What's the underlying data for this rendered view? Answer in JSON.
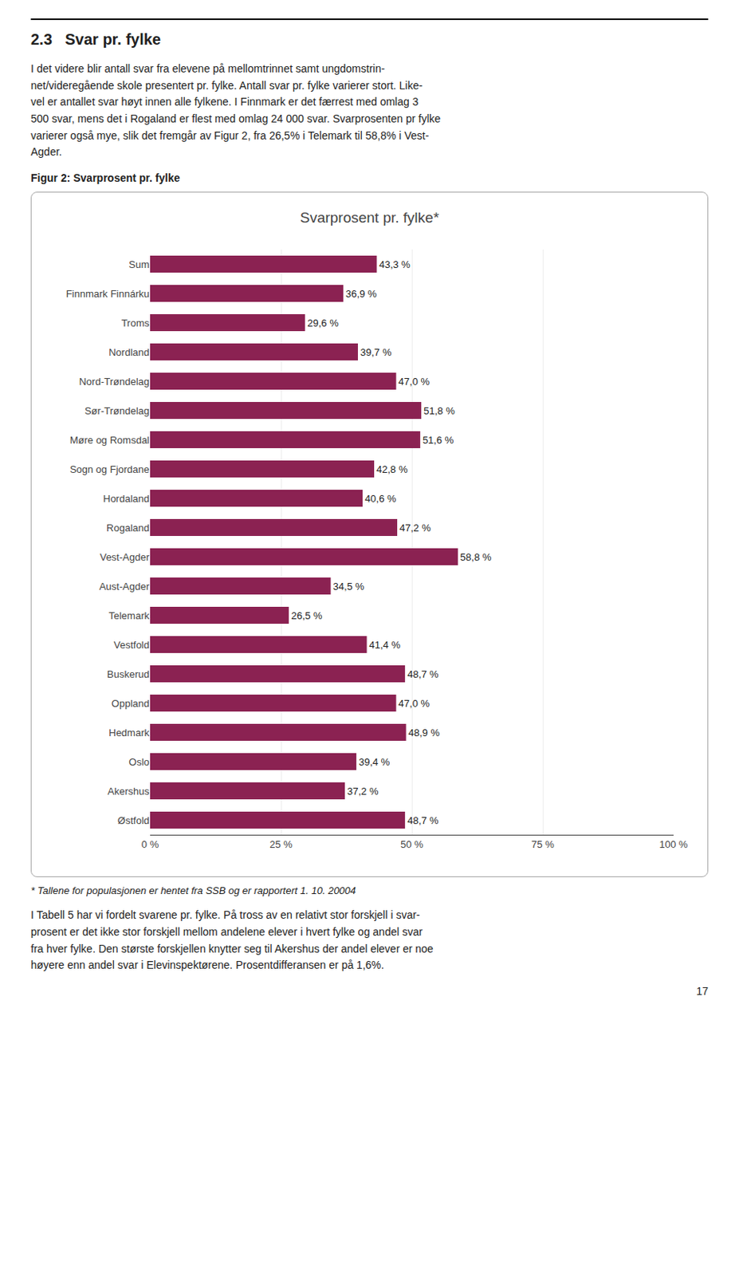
{
  "heading": "2.3   Svar pr. fylke",
  "body_text_1": "I det videre blir antall svar fra elevene på mellomtrinnet samt ungdomstrin-\nnet/videregående skole presentert pr. fylke. Antall svar pr. fylke varierer stort. Like-\nvel er antallet svar høyt innen alle fylkene. I Finnmark er det færrest med omlag 3\n500 svar, mens det i Rogaland er flest med omlag 24 000 svar. Svarprosenten pr fylke\nvarierer også mye, slik det fremgår av Figur 2, fra 26,5% i Telemark til 58,8% i Vest-\nAgder.",
  "fig_label": "Figur 2: Svarprosent pr. fylke",
  "chart_data": {
    "type": "bar",
    "orientation": "horizontal",
    "title": "Svarprosent pr. fylke*",
    "categories": [
      "Sum",
      "Finnmark Finnárku",
      "Troms",
      "Nordland",
      "Nord-Trøndelag",
      "Sør-Trøndelag",
      "Møre og Romsdal",
      "Sogn og Fjordane",
      "Hordaland",
      "Rogaland",
      "Vest-Agder",
      "Aust-Agder",
      "Telemark",
      "Vestfold",
      "Buskerud",
      "Oppland",
      "Hedmark",
      "Oslo",
      "Akershus",
      "Østfold"
    ],
    "values": [
      43.3,
      36.9,
      29.6,
      39.7,
      47.0,
      51.8,
      51.6,
      42.8,
      40.6,
      47.2,
      58.8,
      34.5,
      26.5,
      41.4,
      48.7,
      47.0,
      48.9,
      39.4,
      37.2,
      48.7
    ],
    "value_labels": [
      "43,3 %",
      "36,9 %",
      "29,6 %",
      "39,7 %",
      "47,0 %",
      "51,8 %",
      "51,6 %",
      "42,8 %",
      "40,6 %",
      "47,2 %",
      "58,8 %",
      "34,5 %",
      "26,5 %",
      "41,4 %",
      "48,7 %",
      "47,0 %",
      "48,9 %",
      "39,4 %",
      "37,2 %",
      "48,7 %"
    ],
    "data_labels": true,
    "color": "#8B2252",
    "xlim": [
      0,
      100
    ],
    "xticks": [
      {
        "value": 0,
        "label": "0 %"
      },
      {
        "value": 25,
        "label": "25 %"
      },
      {
        "value": 50,
        "label": "50 %"
      },
      {
        "value": 75,
        "label": "75 %"
      },
      {
        "value": 100,
        "label": "100 %"
      }
    ],
    "grid": true
  },
  "footnote": "* Tallene for populasjonen er hentet fra SSB og er rapportert 1. 10. 20004",
  "body_text_2": "I Tabell 5 har vi fordelt svarene pr. fylke. På tross av en relativt stor forskjell i svar-\nprosent er det ikke stor forskjell mellom andelene elever i hvert fylke og andel svar\nfra hver fylke. Den største forskjellen knytter seg til Akershus der andel elever er noe\nhøyere enn andel svar i Elevinspektørene. Prosentdifferansen er på 1,6%.",
  "page_number": "17"
}
